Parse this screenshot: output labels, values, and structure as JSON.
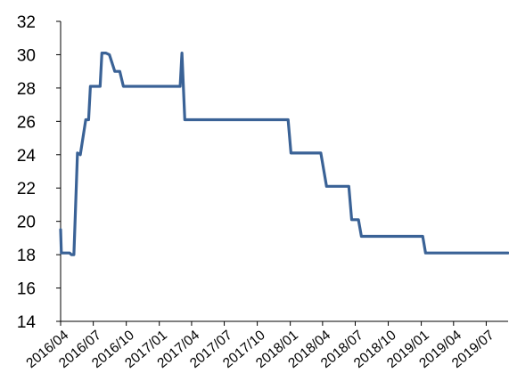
{
  "chart_data": {
    "type": "line",
    "title": "",
    "xlabel": "",
    "ylabel": "",
    "ylim": [
      14,
      32
    ],
    "y_ticks": [
      "14",
      "16",
      "18",
      "20",
      "22",
      "24",
      "26",
      "28",
      "30",
      "32"
    ],
    "x_ticks": [
      "2016/04",
      "2016/07",
      "2016/10",
      "2017/01",
      "2017/04",
      "2017/07",
      "2017/10",
      "2018/01",
      "2018/04",
      "2018/07",
      "2018/10",
      "2019/01",
      "2019/04",
      "2019/07"
    ],
    "grid": false,
    "legend": "none",
    "series": [
      {
        "color": "#3a6296",
        "points": [
          [
            "2016/04/01",
            19.5
          ],
          [
            "2016/04/03",
            18.1
          ],
          [
            "2016/04/26",
            18.1
          ],
          [
            "2016/05/01",
            18.0
          ],
          [
            "2016/05/08",
            18.0
          ],
          [
            "2016/05/18",
            24.1
          ],
          [
            "2016/05/26",
            24.0
          ],
          [
            "2016/06/10",
            26.1
          ],
          [
            "2016/06/18",
            26.1
          ],
          [
            "2016/06/23",
            28.1
          ],
          [
            "2016/07/20",
            28.1
          ],
          [
            "2016/07/25",
            30.1
          ],
          [
            "2016/08/05",
            30.1
          ],
          [
            "2016/08/15",
            30.0
          ],
          [
            "2016/08/30",
            29.0
          ],
          [
            "2016/09/13",
            29.0
          ],
          [
            "2016/09/23",
            28.1
          ],
          [
            "2017/02/28",
            28.1
          ],
          [
            "2017/03/05",
            30.1
          ],
          [
            "2017/03/13",
            26.1
          ],
          [
            "2017/12/26",
            26.1
          ],
          [
            "2018/01/03",
            24.1
          ],
          [
            "2018/03/27",
            24.1
          ],
          [
            "2018/04/12",
            22.1
          ],
          [
            "2018/06/13",
            22.1
          ],
          [
            "2018/06/21",
            20.1
          ],
          [
            "2018/07/10",
            20.1
          ],
          [
            "2018/07/18",
            19.1
          ],
          [
            "2019/01/05",
            19.1
          ],
          [
            "2019/01/13",
            18.1
          ],
          [
            "2019/08/31",
            18.1
          ]
        ]
      }
    ]
  }
}
